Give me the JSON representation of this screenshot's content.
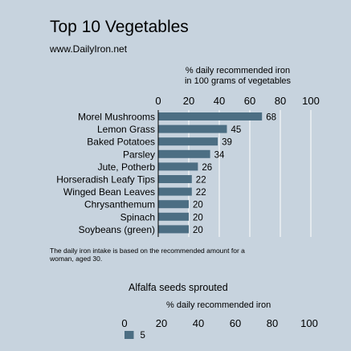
{
  "title": "Top 10 Vegetables",
  "source": "www.DailyIron.net",
  "note": "The daily iron intake is based on the recommended amount for a woman, aged 30.",
  "chart_data": [
    {
      "type": "bar",
      "orientation": "horizontal",
      "xlabel_lines": [
        "% daily recommended iron",
        "in 100 grams of vegetables"
      ],
      "xlim": [
        0,
        100
      ],
      "ticks": [
        "0",
        "20",
        "40",
        "60",
        "80",
        "100"
      ],
      "categories": [
        "Morel Mushrooms",
        "Lemon Grass",
        "Baked Potatoes",
        "Parsley",
        "Jute, Potherb",
        "Horseradish Leafy Tips",
        "Winged Bean Leaves",
        "Chrysanthemum",
        "Spinach",
        "Soybeans (green)"
      ],
      "values": [
        68,
        45,
        39,
        34,
        26,
        22,
        22,
        20,
        20,
        20
      ],
      "bar_color": "#4c6e83",
      "grid": true,
      "grid_color": "#ffffff"
    },
    {
      "type": "bar",
      "orientation": "horizontal",
      "title": "Alfalfa seeds sprouted",
      "xlabel": "% daily recommended iron",
      "xlim": [
        0,
        100
      ],
      "ticks": [
        "0",
        "20",
        "40",
        "60",
        "80",
        "100"
      ],
      "categories": [
        ""
      ],
      "values": [
        5
      ],
      "bar_color": "#4c6e83"
    }
  ]
}
